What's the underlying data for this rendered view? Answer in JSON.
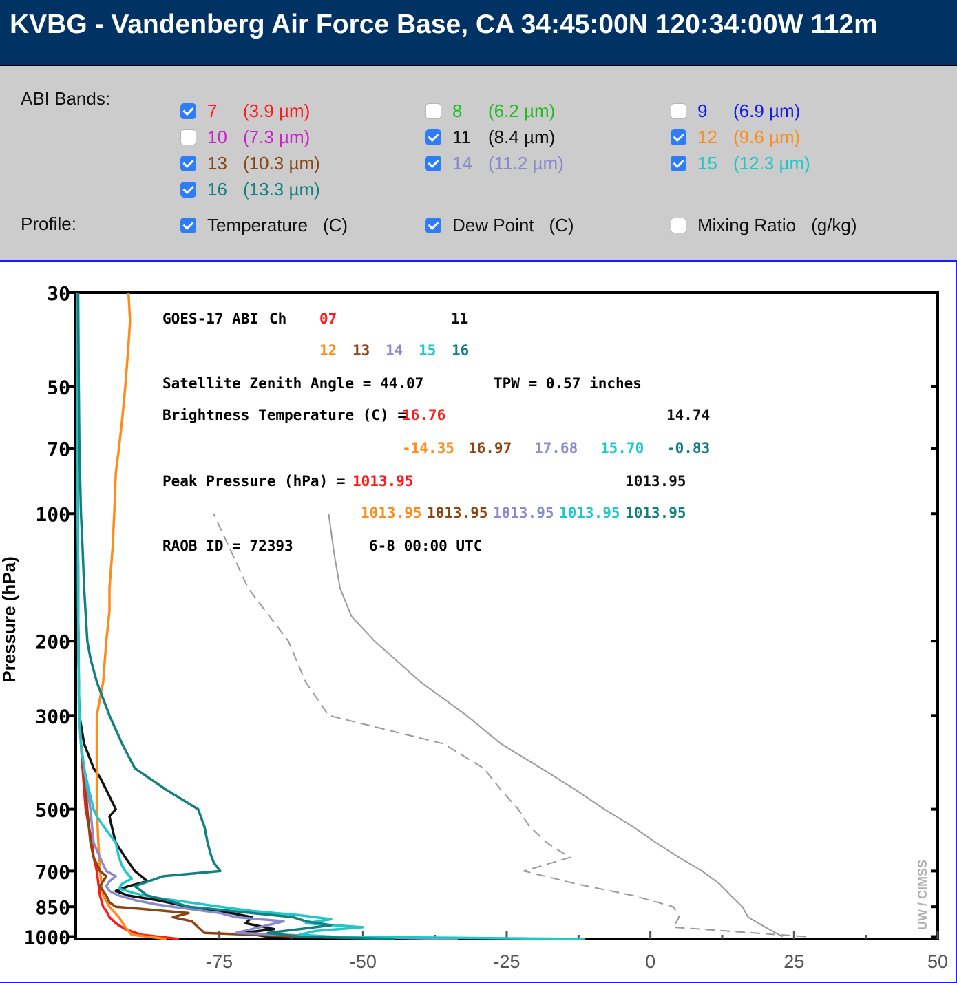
{
  "header": {
    "title": "KVBG - Vandenberg Air Force Base, CA 34:45:00N 120:34:00W 112m"
  },
  "controls": {
    "bands_label": "ABI Bands:",
    "bands": [
      {
        "num": "7",
        "wavelength": "(3.9 µm)",
        "checked": true,
        "color": "#ff1a1a"
      },
      {
        "num": "8",
        "wavelength": "(6.2 µm)",
        "checked": false,
        "color": "#22bb22"
      },
      {
        "num": "9",
        "wavelength": "(6.9 µm)",
        "checked": false,
        "color": "#1a1ae6"
      },
      {
        "num": "10",
        "wavelength": "(7.3 µm)",
        "checked": false,
        "color": "#cc22cc"
      },
      {
        "num": "11",
        "wavelength": "(8.4 µm)",
        "checked": true,
        "color": "#111111"
      },
      {
        "num": "12",
        "wavelength": "(9.6 µm)",
        "checked": true,
        "color": "#ff8c1a"
      },
      {
        "num": "13",
        "wavelength": "(10.3 µm)",
        "checked": true,
        "color": "#8b4513"
      },
      {
        "num": "14",
        "wavelength": "(11.2 µm)",
        "checked": true,
        "color": "#8a8acc"
      },
      {
        "num": "15",
        "wavelength": "(12.3 µm)",
        "checked": true,
        "color": "#1ec8c8"
      },
      {
        "num": "16",
        "wavelength": "(13.3 µm)",
        "checked": true,
        "color": "#138080"
      }
    ],
    "profile_label": "Profile:",
    "profiles": [
      {
        "name": "Temperature",
        "unit": "(C)",
        "checked": true
      },
      {
        "name": "Dew Point",
        "unit": "(C)",
        "checked": true
      },
      {
        "name": "Mixing Ratio",
        "unit": "(g/kg)",
        "checked": false
      }
    ]
  },
  "chart_data": {
    "type": "line",
    "ylabel": "Pressure (hPa)",
    "y_scale": "log",
    "y_range": [
      1013,
      30
    ],
    "y_ticks": [
      30,
      50,
      70,
      100,
      200,
      300,
      500,
      700,
      850,
      1000
    ],
    "x_ticks": [
      -75,
      -50,
      -25,
      0,
      25,
      50
    ],
    "x_range": [
      -100,
      50
    ],
    "watermark": "UW / CIMSS",
    "annotations": {
      "instrument": "GOES-17 ABI",
      "ch_label": "Ch",
      "channels_row1": [
        "07",
        "11"
      ],
      "channels_row2": [
        "12",
        "13",
        "14",
        "15",
        "16"
      ],
      "zenith": "Satellite Zenith Angle = 44.07",
      "tpw": "TPW = 0.57 inches",
      "bt_label": "Brightness Temperature (C) =",
      "bt_row1": [
        "16.76",
        "14.74"
      ],
      "bt_row2": [
        "-14.35",
        "16.97",
        "17.68",
        "15.70",
        "-0.83"
      ],
      "peak_label": "Peak Pressure (hPa) =",
      "peak_row1": [
        "1013.95",
        "1013.95"
      ],
      "peak_row2": [
        "1013.95",
        "1013.95",
        "1013.95",
        "1013.95",
        "1013.95"
      ],
      "raob": "RAOB ID = 72393",
      "time": "6-8 00:00 UTC"
    },
    "temperature_profile": {
      "pressure": [
        1000,
        950,
        900,
        850,
        800,
        750,
        700,
        650,
        600,
        550,
        500,
        450,
        400,
        350,
        300,
        250,
        200,
        175,
        150,
        125,
        100
      ],
      "values": [
        23,
        20,
        17,
        16,
        14,
        12,
        9,
        5,
        1,
        -3,
        -8,
        -13,
        -19,
        -26,
        -32,
        -40,
        -48,
        -52,
        -54,
        -55,
        -56
      ]
    },
    "dewpoint_profile": {
      "pressure": [
        1000,
        950,
        900,
        850,
        800,
        750,
        700,
        650,
        600,
        550,
        500,
        450,
        400,
        350,
        300,
        250,
        200,
        150,
        100
      ],
      "values": [
        27,
        4,
        5,
        4,
        -3,
        -13,
        -22,
        -14,
        -18,
        -21,
        -23,
        -26,
        -29,
        -36,
        -56,
        -60,
        -63,
        -70,
        -76
      ]
    },
    "weighting_functions": [
      {
        "name": "07",
        "color": "#ff1a1a",
        "pressure": [
          1013,
          990,
          960,
          930,
          900,
          870,
          850,
          800,
          750,
          700,
          650,
          600,
          550,
          500,
          450,
          400,
          350,
          300,
          250,
          200,
          150,
          100,
          70,
          50,
          30
        ],
        "values": [
          0.32,
          0.2,
          0.15,
          0.12,
          0.1,
          0.09,
          0.08,
          0.07,
          0.065,
          0.06,
          0.05,
          0.045,
          0.035,
          0.025,
          0.02,
          0.015,
          0.01,
          0.005,
          0.003,
          0.002,
          0.001,
          0.0,
          0.0,
          0.0,
          0.0
        ]
      },
      {
        "name": "11",
        "color": "#111111",
        "pressure": [
          1013,
          1000,
          980,
          960,
          930,
          900,
          870,
          850,
          820,
          800,
          780,
          760,
          740,
          700,
          650,
          600,
          560,
          520,
          500,
          450,
          420,
          400,
          350,
          300,
          250,
          200,
          150,
          100,
          70,
          50,
          30
        ],
        "values": [
          0.95,
          0.6,
          0.52,
          0.62,
          0.53,
          0.55,
          0.45,
          0.35,
          0.25,
          0.16,
          0.12,
          0.16,
          0.22,
          0.18,
          0.15,
          0.12,
          0.11,
          0.1,
          0.12,
          0.09,
          0.07,
          0.05,
          0.02,
          0.005,
          0.003,
          0.002,
          0.001,
          0.0,
          0.0,
          0.0,
          0.0
        ]
      },
      {
        "name": "12",
        "color": "#ff8c1a",
        "pressure": [
          1013,
          990,
          950,
          900,
          850,
          800,
          700,
          600,
          500,
          400,
          300,
          250,
          200,
          170,
          150,
          120,
          100,
          80,
          70,
          60,
          50,
          40,
          35,
          30
        ],
        "values": [
          0.28,
          0.17,
          0.15,
          0.13,
          0.1,
          0.08,
          0.07,
          0.065,
          0.06,
          0.06,
          0.06,
          0.08,
          0.09,
          0.1,
          0.1,
          0.11,
          0.115,
          0.12,
          0.13,
          0.14,
          0.15,
          0.16,
          0.165,
          0.16
        ]
      },
      {
        "name": "13",
        "color": "#8b4513",
        "pressure": [
          1013,
          1000,
          980,
          950,
          920,
          900,
          880,
          860,
          850,
          830,
          800,
          780,
          760,
          740,
          720,
          700,
          650,
          600,
          550,
          500,
          450,
          400,
          350,
          300,
          250,
          200,
          150,
          100,
          70,
          50,
          30
        ],
        "values": [
          1.0,
          0.7,
          0.4,
          0.38,
          0.36,
          0.3,
          0.35,
          0.2,
          0.12,
          0.1,
          0.09,
          0.08,
          0.07,
          0.08,
          0.09,
          0.07,
          0.05,
          0.04,
          0.035,
          0.03,
          0.025,
          0.02,
          0.01,
          0.004,
          0.003,
          0.002,
          0.001,
          0.0,
          0.0,
          0.0,
          0.0
        ]
      },
      {
        "name": "14",
        "color": "#8a8acc",
        "pressure": [
          1013,
          1000,
          980,
          960,
          940,
          920,
          900,
          880,
          860,
          840,
          820,
          800,
          780,
          760,
          740,
          720,
          700,
          650,
          600,
          550,
          500,
          450,
          400,
          350,
          300,
          250,
          200,
          150,
          100,
          70,
          50,
          30
        ],
        "values": [
          1.2,
          0.8,
          0.5,
          0.55,
          0.6,
          0.65,
          0.5,
          0.45,
          0.35,
          0.25,
          0.18,
          0.13,
          0.1,
          0.09,
          0.1,
          0.12,
          0.09,
          0.07,
          0.05,
          0.045,
          0.04,
          0.03,
          0.02,
          0.01,
          0.004,
          0.003,
          0.002,
          0.001,
          0.0,
          0.0,
          0.0,
          0.0
        ]
      },
      {
        "name": "15",
        "color": "#1ec8c8",
        "pressure": [
          1013,
          1000,
          990,
          970,
          950,
          930,
          910,
          890,
          870,
          850,
          830,
          810,
          790,
          770,
          750,
          730,
          700,
          680,
          650,
          600,
          560,
          520,
          500,
          450,
          400,
          350,
          300,
          250,
          200,
          150,
          100,
          70,
          50,
          30
        ],
        "values": [
          1.6,
          0.8,
          0.7,
          0.75,
          0.9,
          0.72,
          0.8,
          0.7,
          0.55,
          0.45,
          0.35,
          0.25,
          0.18,
          0.13,
          0.14,
          0.17,
          0.15,
          0.14,
          0.13,
          0.12,
          0.09,
          0.06,
          0.05,
          0.035,
          0.02,
          0.01,
          0.005,
          0.003,
          0.002,
          0.001,
          0.0,
          0.0,
          0.0,
          0.0
        ]
      },
      {
        "name": "16",
        "color": "#138080",
        "pressure": [
          1013,
          1000,
          980,
          960,
          940,
          920,
          900,
          880,
          860,
          850,
          820,
          800,
          760,
          720,
          700,
          670,
          640,
          600,
          550,
          500,
          450,
          400,
          350,
          300,
          250,
          220,
          200,
          150,
          120,
          100,
          70,
          50,
          30
        ],
        "values": [
          1.0,
          0.7,
          0.6,
          0.7,
          0.8,
          0.72,
          0.68,
          0.55,
          0.42,
          0.35,
          0.28,
          0.22,
          0.18,
          0.27,
          0.45,
          0.43,
          0.42,
          0.41,
          0.4,
          0.38,
          0.28,
          0.18,
          0.14,
          0.1,
          0.06,
          0.04,
          0.03,
          0.02,
          0.015,
          0.01,
          0.005,
          0.003,
          0.001
        ]
      }
    ]
  }
}
